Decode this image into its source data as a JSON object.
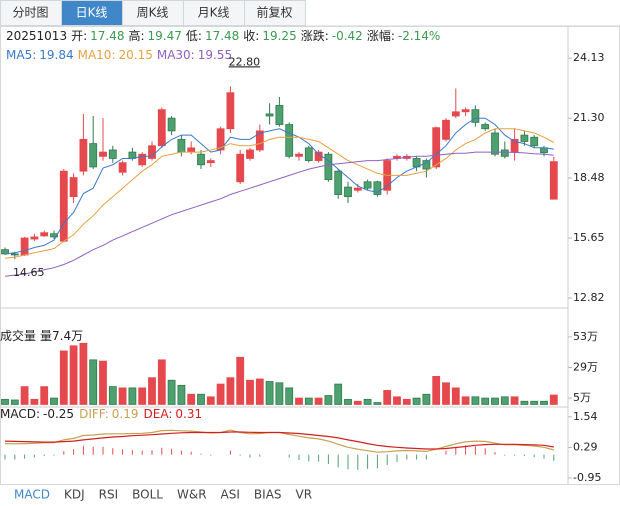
{
  "tabs": [
    "分时图",
    "日K线",
    "周K线",
    "月K线",
    "前复权"
  ],
  "active_tab": 1,
  "info": {
    "date": "20251013",
    "value_color": "#3a9a50",
    "fields": [
      {
        "label": "开:",
        "value": 17.48
      },
      {
        "label": "高:",
        "value": 19.47
      },
      {
        "label": "低:",
        "value": 17.48
      },
      {
        "label": "收:",
        "value": 19.25
      },
      {
        "label": "涨跌:",
        "value": -0.42
      },
      {
        "label": "涨幅:",
        "value": "-2.14%"
      }
    ]
  },
  "chart_data": [
    {
      "type": "candlestick",
      "up_color": "#e5484d",
      "down_color": "#4fa06f",
      "down_edge": "#2f7a4f",
      "open": [
        15.1,
        14.9,
        14.85,
        15.6,
        15.75,
        15.85,
        15.5,
        17.6,
        18.8,
        20.1,
        19.5,
        19.8,
        18.75,
        19.7,
        19.1,
        19.4,
        20.0,
        21.3,
        20.3,
        19.7,
        19.6,
        19.2,
        19.8,
        20.8,
        18.3,
        19.4,
        19.8,
        21.5,
        21.9,
        21.0,
        19.5,
        19.9,
        19.3,
        19.6,
        18.8,
        18.05,
        17.9,
        18.3,
        18.3,
        17.9,
        19.4,
        19.4,
        19.4,
        19.3,
        19.0,
        20.3,
        21.4,
        21.6,
        21.7,
        21.0,
        20.6,
        19.8,
        19.7,
        20.5,
        20.4,
        19.9,
        17.48
      ],
      "high": [
        15.2,
        15.0,
        15.7,
        15.85,
        16.0,
        16.0,
        18.9,
        18.7,
        21.5,
        21.4,
        21.3,
        20.0,
        19.3,
        19.9,
        19.7,
        20.2,
        21.8,
        21.4,
        20.5,
        20.2,
        19.8,
        19.4,
        20.9,
        22.8,
        19.8,
        19.9,
        21.0,
        22.0,
        22.3,
        21.1,
        19.7,
        20.0,
        19.8,
        19.7,
        18.9,
        18.3,
        18.2,
        18.4,
        18.35,
        19.4,
        19.6,
        19.6,
        19.5,
        19.4,
        20.9,
        21.3,
        22.7,
        21.8,
        21.9,
        21.1,
        20.8,
        20.2,
        20.8,
        20.7,
        20.5,
        20.0,
        19.47
      ],
      "low": [
        14.85,
        14.65,
        14.8,
        15.5,
        15.7,
        15.6,
        15.45,
        17.3,
        18.6,
        18.9,
        19.3,
        19.2,
        18.6,
        19.3,
        19.0,
        19.3,
        19.9,
        20.5,
        19.5,
        19.6,
        18.9,
        19.0,
        19.6,
        20.6,
        18.2,
        19.3,
        19.7,
        21.0,
        20.9,
        19.4,
        19.3,
        19.2,
        19.2,
        18.3,
        17.5,
        17.3,
        17.8,
        17.9,
        17.6,
        17.7,
        19.3,
        19.3,
        18.8,
        18.5,
        18.9,
        20.2,
        21.3,
        21.4,
        20.9,
        20.7,
        19.5,
        19.4,
        19.3,
        20.0,
        19.9,
        19.5,
        17.48
      ],
      "close": [
        14.9,
        14.85,
        15.65,
        15.7,
        15.9,
        15.7,
        18.8,
        18.5,
        20.3,
        19.0,
        19.7,
        19.4,
        19.2,
        19.4,
        19.6,
        20.0,
        21.7,
        20.7,
        19.7,
        19.9,
        19.1,
        19.3,
        20.8,
        22.5,
        19.6,
        19.8,
        20.7,
        21.4,
        21.0,
        19.5,
        19.6,
        19.3,
        19.7,
        18.4,
        17.7,
        17.6,
        18.0,
        18.0,
        17.7,
        19.3,
        19.5,
        19.5,
        19.0,
        18.9,
        20.85,
        21.2,
        21.6,
        21.7,
        21.1,
        20.8,
        19.6,
        19.5,
        20.3,
        20.2,
        20.0,
        19.67,
        19.25
      ],
      "series": [
        {
          "name": "MA5:",
          "last": 19.84,
          "color": "#3a78c8",
          "values": [
            14.9,
            14.95,
            15.05,
            15.2,
            15.3,
            15.55,
            16.35,
            16.85,
            17.75,
            18.0,
            18.95,
            19.1,
            19.4,
            19.4,
            19.5,
            19.5,
            19.95,
            20.3,
            20.5,
            20.5,
            20.1,
            19.7,
            19.8,
            20.4,
            20.3,
            20.3,
            20.6,
            20.7,
            20.8,
            20.6,
            20.4,
            20.1,
            19.6,
            19.3,
            18.9,
            18.5,
            18.1,
            17.9,
            17.8,
            18.1,
            18.5,
            18.8,
            19.0,
            19.2,
            19.6,
            20.0,
            20.6,
            21.0,
            21.3,
            21.3,
            21.0,
            20.5,
            20.2,
            20.1,
            19.9,
            19.9,
            19.84
          ]
        },
        {
          "name": "MA10:",
          "last": 20.15,
          "color": "#e8a040",
          "values": [
            14.7,
            14.75,
            14.85,
            14.95,
            15.05,
            15.15,
            15.5,
            15.8,
            16.3,
            16.7,
            17.2,
            17.6,
            18.0,
            18.4,
            18.8,
            19.1,
            19.5,
            19.6,
            19.7,
            19.7,
            19.7,
            19.8,
            19.9,
            20.1,
            20.0,
            20.0,
            20.1,
            20.3,
            20.4,
            20.4,
            20.4,
            20.3,
            20.2,
            19.9,
            19.6,
            19.3,
            19.1,
            18.9,
            18.7,
            18.6,
            18.6,
            18.6,
            18.7,
            18.8,
            19.1,
            19.4,
            19.8,
            20.1,
            20.3,
            20.6,
            20.8,
            20.8,
            20.8,
            20.7,
            20.6,
            20.4,
            20.15
          ]
        },
        {
          "name": "MA30:",
          "last": 19.55,
          "color": "#9060c0",
          "values": [
            13.85,
            13.9,
            13.95,
            14.05,
            14.15,
            14.25,
            14.4,
            14.6,
            14.85,
            15.1,
            15.3,
            15.55,
            15.75,
            15.95,
            16.15,
            16.35,
            16.55,
            16.75,
            16.9,
            17.05,
            17.2,
            17.35,
            17.5,
            17.7,
            17.85,
            18.0,
            18.15,
            18.3,
            18.45,
            18.6,
            18.75,
            18.9,
            19.0,
            19.1,
            19.15,
            19.2,
            19.25,
            19.3,
            19.3,
            19.35,
            19.4,
            19.45,
            19.5,
            19.5,
            19.55,
            19.6,
            19.65,
            19.65,
            19.7,
            19.7,
            19.7,
            19.7,
            19.68,
            19.66,
            19.62,
            19.6,
            19.55
          ]
        }
      ],
      "annotations": {
        "high_label": "22.80",
        "low_label": "14.65"
      },
      "ylim": [
        12.35,
        25.55
      ],
      "yticks": [
        24.13,
        {
          "value": 21.3,
          "label": "21.30"
        },
        18.48,
        15.65,
        12.82
      ]
    },
    {
      "type": "volume",
      "title": "成交量",
      "label": "量7.4万",
      "values": [
        4,
        3.5,
        14,
        4,
        14,
        5,
        42,
        46,
        48,
        35,
        34,
        14,
        13,
        13,
        13,
        21,
        35,
        19,
        15,
        8,
        8,
        6,
        16,
        21,
        37,
        19,
        20,
        18,
        17,
        13,
        5,
        5,
        5,
        7,
        16,
        4,
        2.5,
        4,
        1.5,
        11,
        6,
        4,
        5,
        8,
        22,
        17,
        13,
        6,
        6,
        5,
        5,
        6,
        6,
        2.5,
        2.5,
        2.5,
        7.4
      ],
      "ylim": [
        -2,
        60
      ],
      "yticks": [
        {
          "value": 53,
          "label": "53万"
        },
        {
          "value": 29,
          "label": "29万"
        },
        {
          "value": 5,
          "label": "5万"
        }
      ]
    },
    {
      "type": "macd",
      "ylim": [
        -1.36,
        1.9
      ],
      "yticks": [
        1.54,
        0.29,
        -0.95
      ],
      "series": [
        {
          "name": "MACD:",
          "last": -0.25,
          "color": "#222222",
          "values": [
            -0.2,
            -0.2,
            -0.16,
            -0.12,
            -0.06,
            -0.04,
            0.14,
            0.22,
            0.36,
            0.32,
            0.32,
            0.26,
            0.22,
            0.18,
            0.16,
            0.18,
            0.28,
            0.24,
            0.16,
            0.12,
            0.04,
            -0.04,
            0,
            0.16,
            -0.04,
            -0.12,
            -0.08,
            0,
            0,
            -0.12,
            -0.22,
            -0.28,
            -0.28,
            -0.38,
            -0.52,
            -0.6,
            -0.62,
            -0.58,
            -0.56,
            -0.42,
            -0.3,
            -0.2,
            -0.2,
            -0.2,
            -0.02,
            0.16,
            0.3,
            0.38,
            0.34,
            0.26,
            0.1,
            -0.04,
            -0.04,
            -0.06,
            -0.1,
            -0.16,
            -0.25
          ]
        },
        {
          "name": "DIFF:",
          "last": 0.19,
          "color": "#c8a050",
          "values": [
            0.45,
            0.44,
            0.45,
            0.46,
            0.48,
            0.49,
            0.6,
            0.66,
            0.78,
            0.8,
            0.84,
            0.85,
            0.85,
            0.86,
            0.87,
            0.9,
            0.98,
            0.99,
            0.97,
            0.96,
            0.92,
            0.88,
            0.9,
            1.0,
            0.9,
            0.85,
            0.86,
            0.9,
            0.9,
            0.82,
            0.75,
            0.68,
            0.64,
            0.55,
            0.42,
            0.3,
            0.22,
            0.16,
            0.1,
            0.12,
            0.15,
            0.17,
            0.15,
            0.13,
            0.22,
            0.33,
            0.44,
            0.52,
            0.55,
            0.54,
            0.47,
            0.4,
            0.4,
            0.38,
            0.35,
            0.3,
            0.19
          ]
        },
        {
          "name": "DEA:",
          "last": 0.31,
          "color": "#d02020",
          "values": [
            0.55,
            0.54,
            0.53,
            0.52,
            0.51,
            0.51,
            0.53,
            0.55,
            0.6,
            0.64,
            0.68,
            0.72,
            0.74,
            0.77,
            0.79,
            0.81,
            0.84,
            0.87,
            0.89,
            0.9,
            0.9,
            0.9,
            0.9,
            0.92,
            0.92,
            0.91,
            0.9,
            0.9,
            0.9,
            0.88,
            0.86,
            0.82,
            0.78,
            0.74,
            0.68,
            0.6,
            0.53,
            0.45,
            0.38,
            0.33,
            0.3,
            0.27,
            0.25,
            0.23,
            0.23,
            0.25,
            0.29,
            0.33,
            0.38,
            0.41,
            0.42,
            0.42,
            0.42,
            0.41,
            0.4,
            0.38,
            0.31
          ]
        }
      ]
    }
  ],
  "indicator_tabs": [
    "MACD",
    "KDJ",
    "RSI",
    "BOLL",
    "W&R",
    "ASI",
    "BIAS",
    "VR"
  ],
  "active_indicator": 0
}
